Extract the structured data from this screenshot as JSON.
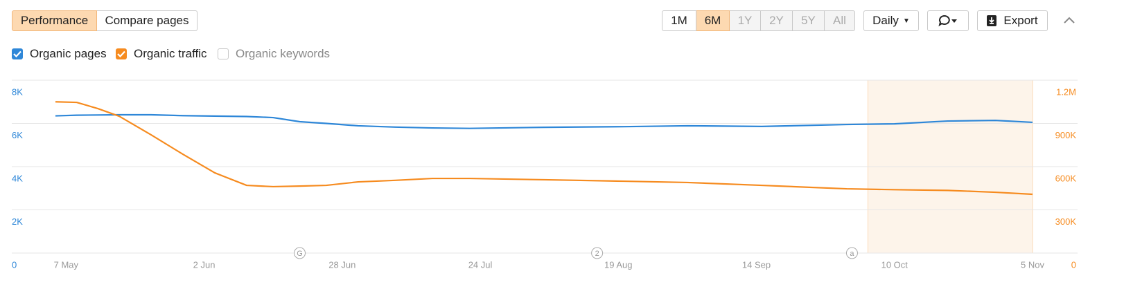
{
  "ui": {
    "tabs": [
      "Performance",
      "Compare pages"
    ],
    "active_tab": 0,
    "ranges": [
      "1M",
      "6M",
      "1Y",
      "2Y",
      "5Y",
      "All"
    ],
    "active_range": 1,
    "disabled_ranges": [
      2,
      3,
      4,
      5
    ],
    "interval": "Daily",
    "export": "Export",
    "unchecked_metric": "Organic keywords"
  },
  "chart_data": {
    "type": "line",
    "x": [
      "5 May",
      "9 May",
      "13 May",
      "17 May",
      "23 May",
      "29 May",
      "4 Jun",
      "10 Jun",
      "15 Jun",
      "20 Jun",
      "25 Jun",
      "1 Jul",
      "8 Jul",
      "15 Jul",
      "22 Jul",
      "5 Aug",
      "20 Aug",
      "1 Sep",
      "15 Sep",
      "1 Oct",
      "10 Oct",
      "20 Oct",
      "29 Oct",
      "5 Nov"
    ],
    "xlim": [
      "5 May",
      "5 Nov"
    ],
    "xticks": [
      "7 May",
      "2 Jun",
      "28 Jun",
      "24 Jul",
      "19 Aug",
      "14 Sep",
      "10 Oct",
      "5 Nov"
    ],
    "series": [
      {
        "name": "Organic pages",
        "color": "#2e87d8",
        "axis": "y",
        "values": [
          6350,
          6380,
          6390,
          6400,
          6400,
          6360,
          6340,
          6320,
          6270,
          6080,
          6000,
          5890,
          5830,
          5790,
          5770,
          5820,
          5850,
          5890,
          5860,
          5950,
          5980,
          6110,
          6140,
          6050
        ]
      },
      {
        "name": "Organic traffic",
        "color": "#f68b1f",
        "axis": "y2",
        "values": [
          1050000,
          1046000,
          1003000,
          950000,
          821000,
          686000,
          557000,
          470000,
          461000,
          465000,
          470000,
          494000,
          505000,
          518000,
          518000,
          509000,
          499000,
          490000,
          470000,
          446000,
          440000,
          435000,
          422000,
          408000
        ]
      }
    ],
    "ylim": [
      0,
      8000
    ],
    "yticks": [
      0,
      {
        "value": 2000,
        "label": "2K"
      },
      {
        "value": 4000,
        "label": "4K"
      },
      {
        "value": 6000,
        "label": "6K"
      },
      {
        "value": 8000,
        "label": "8K"
      }
    ],
    "y2lim": [
      0,
      1200000
    ],
    "y2ticks": [
      0,
      {
        "value": 300000,
        "label": "300K"
      },
      {
        "value": 600000,
        "label": "600K"
      },
      {
        "value": 900000,
        "label": "900K"
      },
      {
        "value": 1200000,
        "label": "1.2M"
      }
    ],
    "grid": true,
    "highlight": [
      "5 Oct",
      "5 Nov"
    ],
    "annotations": [
      {
        "x": "20 Jun",
        "label": "G"
      },
      {
        "x": "15 Aug",
        "label": "2"
      },
      {
        "x": "2 Oct",
        "label": "a"
      }
    ]
  }
}
